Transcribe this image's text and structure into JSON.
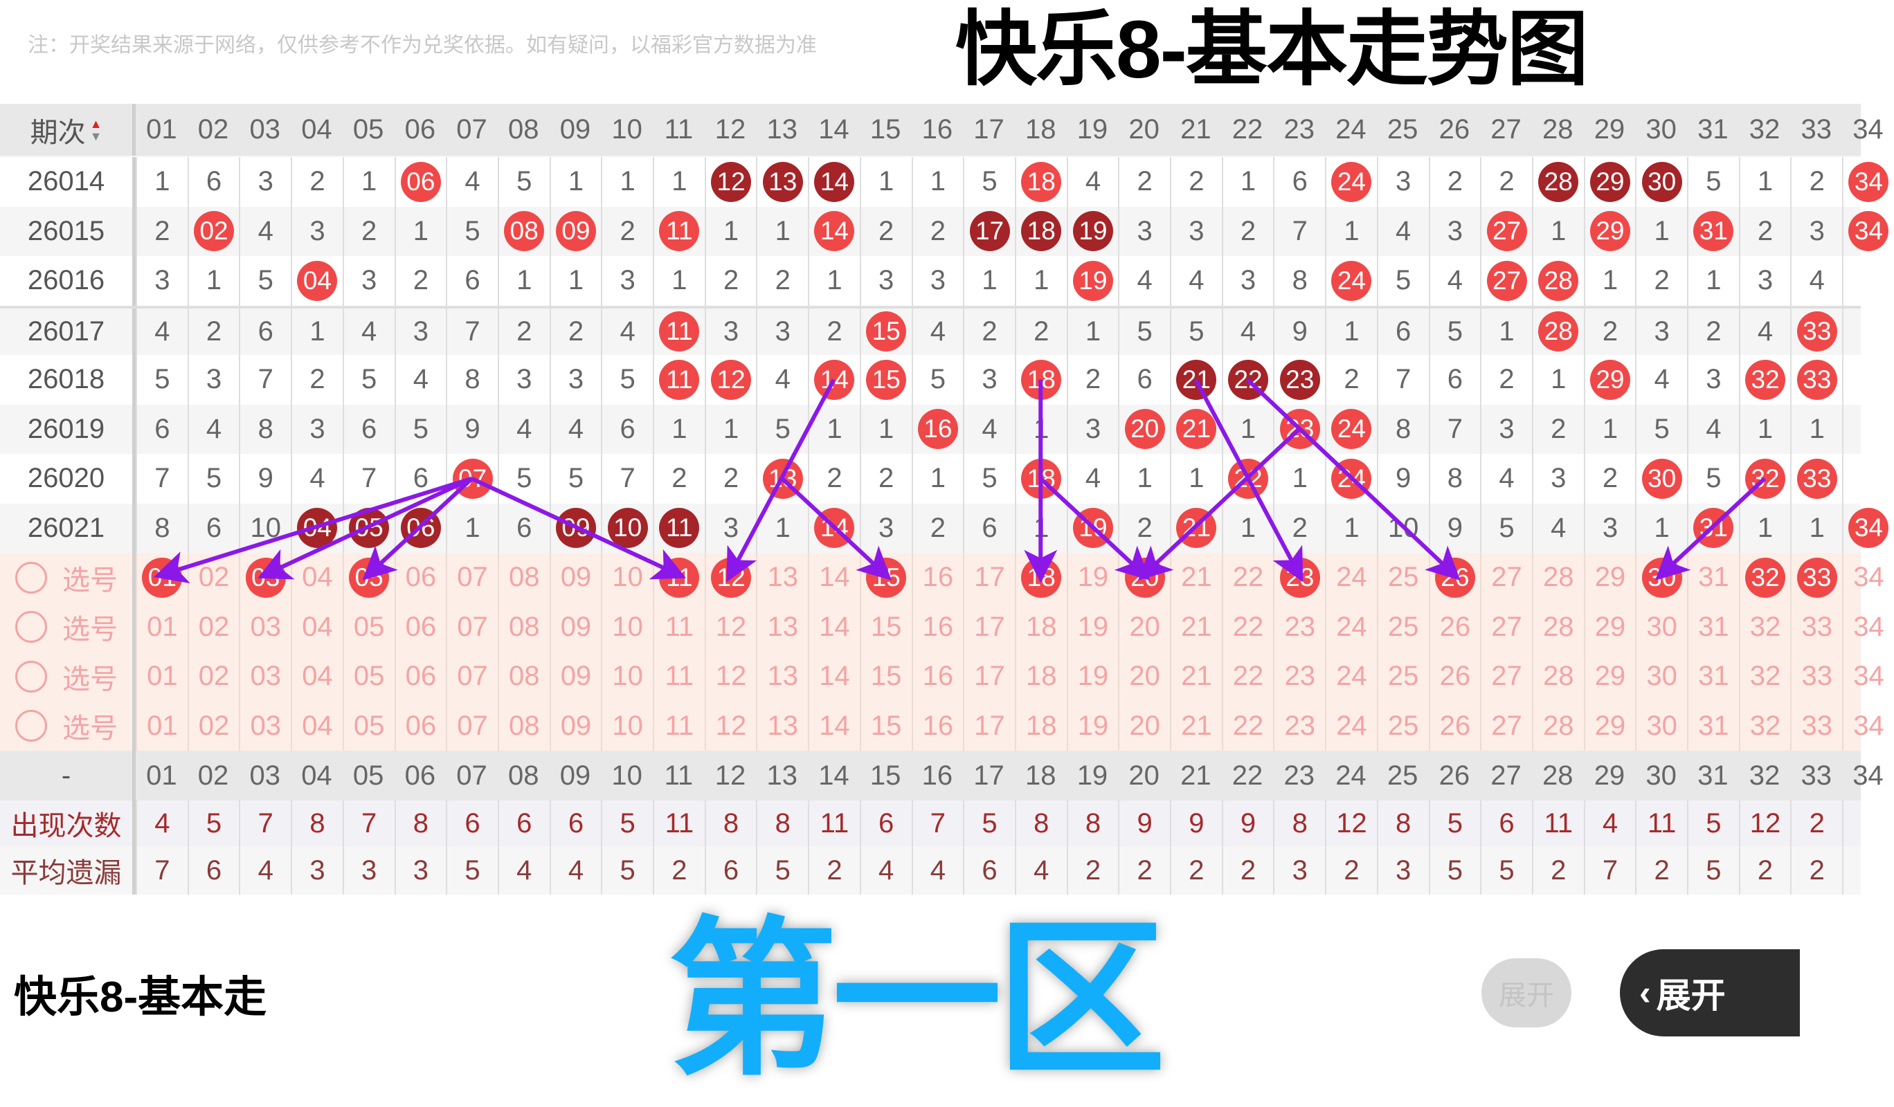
{
  "notice": "注：开奖结果来源于网络，仅供参考不作为兑奖依据。如有疑问，以福彩官方数据为准",
  "overlay": {
    "title": "快乐8-基本走势图",
    "title_partial": "快乐8-基本走",
    "zone_label": "第一区",
    "arrow_color": "#8b18e8",
    "zone_color": "#12aefc"
  },
  "header": {
    "period_label": "期次",
    "sort_up": "▲",
    "sort_down": "▼",
    "numbers": [
      "01",
      "02",
      "03",
      "04",
      "05",
      "06",
      "07",
      "08",
      "09",
      "10",
      "11",
      "12",
      "13",
      "14",
      "15",
      "16",
      "17",
      "18",
      "19",
      "20",
      "21",
      "22",
      "23",
      "24",
      "25",
      "26",
      "27",
      "28",
      "29",
      "30",
      "31",
      "32",
      "33",
      "34"
    ]
  },
  "colors": {
    "ball": "#f04848",
    "ball_consecutive": "#a52428"
  },
  "rows": [
    {
      "period": "26014",
      "values": [
        "1",
        "6",
        "3",
        "2",
        "1",
        "06",
        "4",
        "5",
        "1",
        "1",
        "1",
        "12",
        "13",
        "14",
        "1",
        "1",
        "5",
        "18",
        "4",
        "2",
        "2",
        "1",
        "6",
        "24",
        "3",
        "2",
        "2",
        "28",
        "29",
        "30",
        "5",
        "1",
        "2",
        "34"
      ],
      "hits": [
        6,
        12,
        13,
        14,
        18,
        24,
        28,
        29,
        30,
        34
      ],
      "dark": [
        12,
        13,
        14,
        28,
        29,
        30
      ]
    },
    {
      "period": "26015",
      "values": [
        "2",
        "02",
        "4",
        "3",
        "2",
        "1",
        "5",
        "08",
        "09",
        "2",
        "11",
        "1",
        "1",
        "14",
        "2",
        "2",
        "17",
        "18",
        "19",
        "3",
        "3",
        "2",
        "7",
        "1",
        "4",
        "3",
        "27",
        "1",
        "29",
        "1",
        "31",
        "2",
        "3",
        "34"
      ],
      "hits": [
        2,
        8,
        9,
        11,
        14,
        17,
        18,
        19,
        27,
        29,
        31,
        34
      ],
      "dark": [
        17,
        18,
        19
      ]
    },
    {
      "period": "26016",
      "values": [
        "3",
        "1",
        "5",
        "04",
        "3",
        "2",
        "6",
        "1",
        "1",
        "3",
        "1",
        "2",
        "2",
        "1",
        "3",
        "3",
        "1",
        "1",
        "19",
        "4",
        "4",
        "3",
        "8",
        "24",
        "5",
        "4",
        "27",
        "28",
        "1",
        "2",
        "1",
        "3",
        "4",
        ""
      ],
      "hits": [
        4,
        19,
        24,
        27,
        28
      ],
      "dark": []
    },
    {
      "period": "26017",
      "values": [
        "4",
        "2",
        "6",
        "1",
        "4",
        "3",
        "7",
        "2",
        "2",
        "4",
        "11",
        "3",
        "3",
        "2",
        "15",
        "4",
        "2",
        "2",
        "1",
        "5",
        "5",
        "4",
        "9",
        "1",
        "6",
        "5",
        "1",
        "28",
        "2",
        "3",
        "2",
        "4",
        "33",
        ""
      ],
      "hits": [
        11,
        15,
        28,
        33
      ],
      "dark": []
    },
    {
      "period": "26018",
      "values": [
        "5",
        "3",
        "7",
        "2",
        "5",
        "4",
        "8",
        "3",
        "3",
        "5",
        "11",
        "12",
        "4",
        "14",
        "15",
        "5",
        "3",
        "18",
        "2",
        "6",
        "21",
        "22",
        "23",
        "2",
        "7",
        "6",
        "2",
        "1",
        "29",
        "4",
        "3",
        "32",
        "33",
        ""
      ],
      "hits": [
        11,
        12,
        14,
        15,
        18,
        21,
        22,
        23,
        29,
        32,
        33
      ],
      "dark": [
        21,
        22,
        23
      ]
    },
    {
      "period": "26019",
      "values": [
        "6",
        "4",
        "8",
        "3",
        "6",
        "5",
        "9",
        "4",
        "4",
        "6",
        "1",
        "1",
        "5",
        "1",
        "1",
        "16",
        "4",
        "1",
        "3",
        "20",
        "21",
        "1",
        "23",
        "24",
        "8",
        "7",
        "3",
        "2",
        "1",
        "5",
        "4",
        "1",
        "1",
        ""
      ],
      "hits": [
        16,
        20,
        21,
        23,
        24
      ],
      "dark": []
    },
    {
      "period": "26020",
      "values": [
        "7",
        "5",
        "9",
        "4",
        "7",
        "6",
        "07",
        "5",
        "5",
        "7",
        "2",
        "2",
        "13",
        "2",
        "2",
        "1",
        "5",
        "18",
        "4",
        "1",
        "1",
        "22",
        "1",
        "24",
        "9",
        "8",
        "4",
        "3",
        "2",
        "30",
        "5",
        "32",
        "33",
        ""
      ],
      "hits": [
        7,
        13,
        18,
        22,
        24,
        30,
        32,
        33
      ],
      "dark": []
    },
    {
      "period": "26021",
      "values": [
        "8",
        "6",
        "10",
        "04",
        "05",
        "06",
        "1",
        "6",
        "09",
        "10",
        "11",
        "3",
        "1",
        "14",
        "3",
        "2",
        "6",
        "1",
        "19",
        "2",
        "21",
        "1",
        "2",
        "1",
        "10",
        "9",
        "5",
        "4",
        "3",
        "1",
        "31",
        "1",
        "1",
        "34"
      ],
      "hits": [
        4,
        5,
        6,
        9,
        10,
        11,
        14,
        19,
        21,
        31,
        34
      ],
      "dark": [
        4,
        5,
        6,
        9,
        10,
        11
      ]
    }
  ],
  "select_rows": [
    {
      "label": "选号",
      "selected": [
        1,
        3,
        5,
        11,
        12,
        15,
        18,
        20,
        23,
        26,
        30,
        32,
        33
      ]
    },
    {
      "label": "选号",
      "selected": []
    },
    {
      "label": "选号",
      "selected": []
    },
    {
      "label": "选号",
      "selected": []
    }
  ],
  "footer": {
    "dash": "-",
    "count_label": "出现次数",
    "counts": [
      "4",
      "5",
      "7",
      "8",
      "7",
      "8",
      "6",
      "6",
      "6",
      "5",
      "11",
      "8",
      "8",
      "11",
      "6",
      "7",
      "5",
      "8",
      "8",
      "9",
      "9",
      "9",
      "8",
      "12",
      "8",
      "5",
      "6",
      "11",
      "4",
      "11",
      "5",
      "12",
      "2",
      ""
    ],
    "avg_label": "平均遗漏",
    "avgs": [
      "7",
      "6",
      "4",
      "3",
      "3",
      "3",
      "5",
      "4",
      "4",
      "5",
      "2",
      "6",
      "5",
      "2",
      "4",
      "4",
      "6",
      "4",
      "2",
      "2",
      "2",
      "2",
      "3",
      "2",
      "3",
      "5",
      "5",
      "2",
      "7",
      "2",
      "5",
      "2",
      "2",
      ""
    ]
  },
  "expand_button": {
    "label": "展开",
    "ghost_label": "展开",
    "icon": "chevron-left-icon"
  }
}
